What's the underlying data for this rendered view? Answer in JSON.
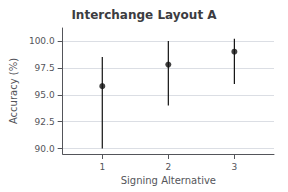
{
  "chart_data": {
    "type": "scatter",
    "title": "Interchange Layout A",
    "xlabel": "Signing Alternative",
    "ylabel": "Accuracy (%)",
    "x": [
      1,
      2,
      3
    ],
    "values": [
      95.8,
      97.8,
      99.0
    ],
    "ci_low": [
      90.0,
      94.0,
      96.0
    ],
    "ci_high": [
      98.5,
      100.0,
      100.2
    ],
    "color": "#111111",
    "xlim": [
      0.4,
      3.6
    ],
    "xticks": [
      1,
      2,
      3
    ],
    "ylim": [
      89.5,
      101.2
    ],
    "yticks": [
      {
        "value": 90.0,
        "label": "90.0"
      },
      92.5,
      {
        "value": 95.0,
        "label": "95.0"
      },
      97.5,
      {
        "value": 100.0,
        "label": "100.0"
      }
    ],
    "grid": true
  }
}
